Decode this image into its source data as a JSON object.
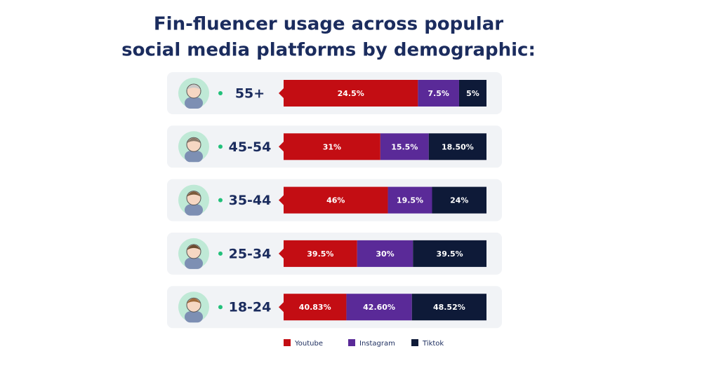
{
  "chart_data": {
    "type": "bar",
    "stacked": "percent",
    "title": [
      "Fin-fluencer usage across popular",
      "social media platforms by demographic:"
    ],
    "categories": [
      "55+",
      "45-54",
      "35-44",
      "25-34",
      "18-24"
    ],
    "series": [
      {
        "name": "Youtube",
        "color": "#c30d13",
        "values": [
          24.5,
          31,
          46,
          39.5,
          40.83
        ],
        "value_labels": [
          "24.5%",
          "31%",
          "46%",
          "39.5%",
          "40.83%"
        ]
      },
      {
        "name": "Instagram",
        "color": "#5a2a98",
        "values": [
          7.5,
          15.5,
          19.5,
          30,
          42.6
        ],
        "value_labels": [
          "7.5%",
          "15.5%",
          "19.5%",
          "30%",
          "42.60%"
        ]
      },
      {
        "name": "Tiktok",
        "color": "#0e1a38",
        "values": [
          5,
          18.5,
          24,
          39.5,
          48.52
        ],
        "value_labels": [
          "5%",
          "18.50%",
          "24%",
          "39.5%",
          "48.52%"
        ]
      }
    ]
  }
}
